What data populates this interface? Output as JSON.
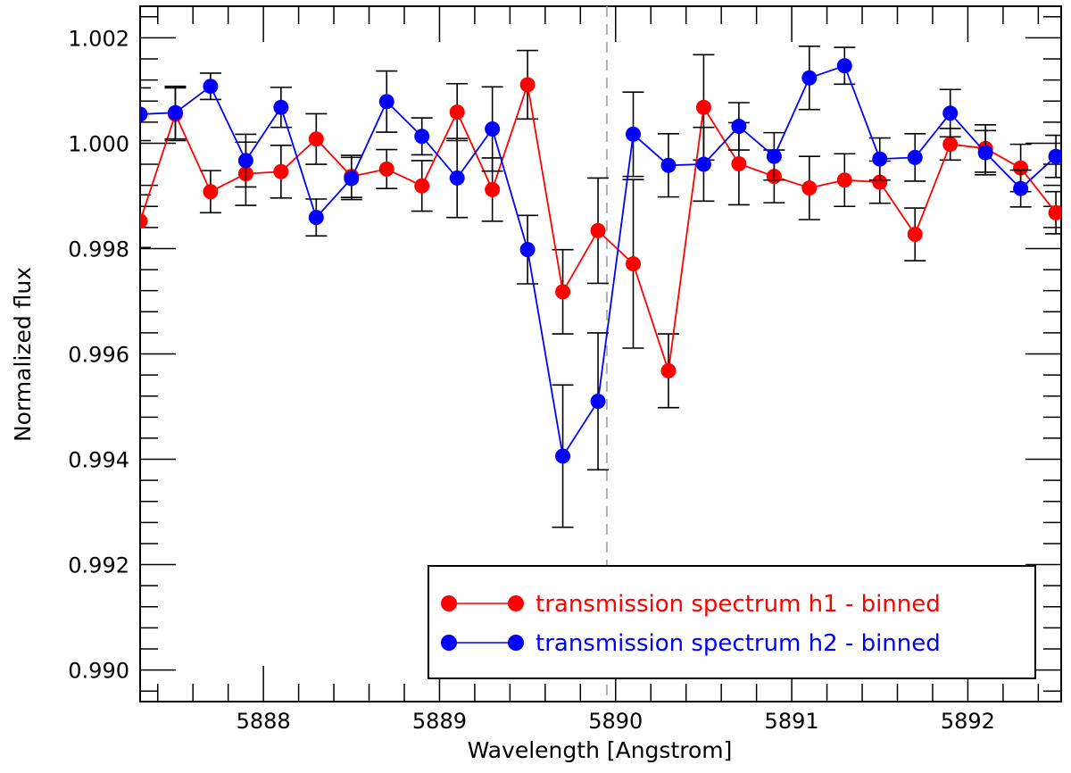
{
  "chart_data": {
    "type": "line",
    "title": "",
    "xlabel": "Wavelength [Angstrom]",
    "ylabel": "Normalized flux",
    "xlim": [
      5887.3,
      5892.53
    ],
    "ylim": [
      0.9894,
      1.0026
    ],
    "xticks": [
      5888,
      5889,
      5890,
      5891,
      5892
    ],
    "xtick_labels": [
      "5888",
      "5889",
      "5890",
      "5891",
      "5892"
    ],
    "yticks": [
      0.99,
      0.992,
      0.994,
      0.996,
      0.998,
      1.0,
      1.002
    ],
    "ytick_labels": [
      "0.990",
      "0.992",
      "0.994",
      "0.996",
      "0.998",
      "1.000",
      "1.002"
    ],
    "reference_line": {
      "x": 5889.95,
      "style": "dashed",
      "color": "#b0b0b0"
    },
    "legend_position": "bottom-right",
    "x": [
      5887.3,
      5887.5,
      5887.7,
      5887.9,
      5888.1,
      5888.3,
      5888.5,
      5888.7,
      5888.9,
      5889.1,
      5889.3,
      5889.5,
      5889.7,
      5889.9,
      5890.1,
      5890.3,
      5890.5,
      5890.7,
      5890.9,
      5891.1,
      5891.3,
      5891.5,
      5891.7,
      5891.9,
      5892.1,
      5892.3,
      5892.5
    ],
    "series": [
      {
        "name": "transmission spectrum h1 - binned",
        "color": "#ff0000",
        "values": [
          0.99852,
          1.00055,
          0.99908,
          0.99942,
          0.99946,
          1.00008,
          0.99937,
          0.99951,
          0.99919,
          1.00059,
          0.99912,
          1.00111,
          0.99718,
          0.99834,
          0.99771,
          0.99568,
          1.00068,
          0.99961,
          0.99937,
          0.99915,
          0.9993,
          0.99926,
          0.99827,
          0.99998,
          0.9999,
          0.99953,
          0.99868
        ],
        "errors": [
          0.0005,
          0.0005,
          0.0004,
          0.0006,
          0.0005,
          0.00048,
          0.0004,
          0.00037,
          0.00048,
          0.00054,
          0.0006,
          0.00065,
          0.0008,
          0.001,
          0.0016,
          0.0007,
          0.001,
          0.00078,
          0.0005,
          0.0006,
          0.0005,
          0.0004,
          0.0005,
          0.0003,
          0.00045,
          0.00045,
          0.0004
        ]
      },
      {
        "name": "transmission spectrum h2 - binned",
        "color": "#0000ff",
        "values": [
          1.00055,
          1.00058,
          1.00108,
          0.99967,
          1.00068,
          0.99859,
          0.99933,
          1.00079,
          1.00013,
          0.99934,
          1.00027,
          0.99798,
          0.99406,
          0.9951,
          1.00017,
          0.99958,
          0.9996,
          1.00032,
          0.99975,
          1.00124,
          1.00147,
          0.9997,
          0.99973,
          1.00057,
          0.99982,
          0.99914,
          0.99975
        ],
        "errors": [
          0.0005,
          0.0005,
          0.00025,
          0.0005,
          0.00038,
          0.00035,
          0.0004,
          0.00058,
          0.00035,
          0.00075,
          0.0008,
          0.00065,
          0.00135,
          0.0013,
          0.0008,
          0.0006,
          0.0007,
          0.00045,
          0.00045,
          0.0006,
          0.00035,
          0.0004,
          0.00045,
          0.00045,
          0.00042,
          0.00035,
          0.0004
        ]
      }
    ]
  }
}
